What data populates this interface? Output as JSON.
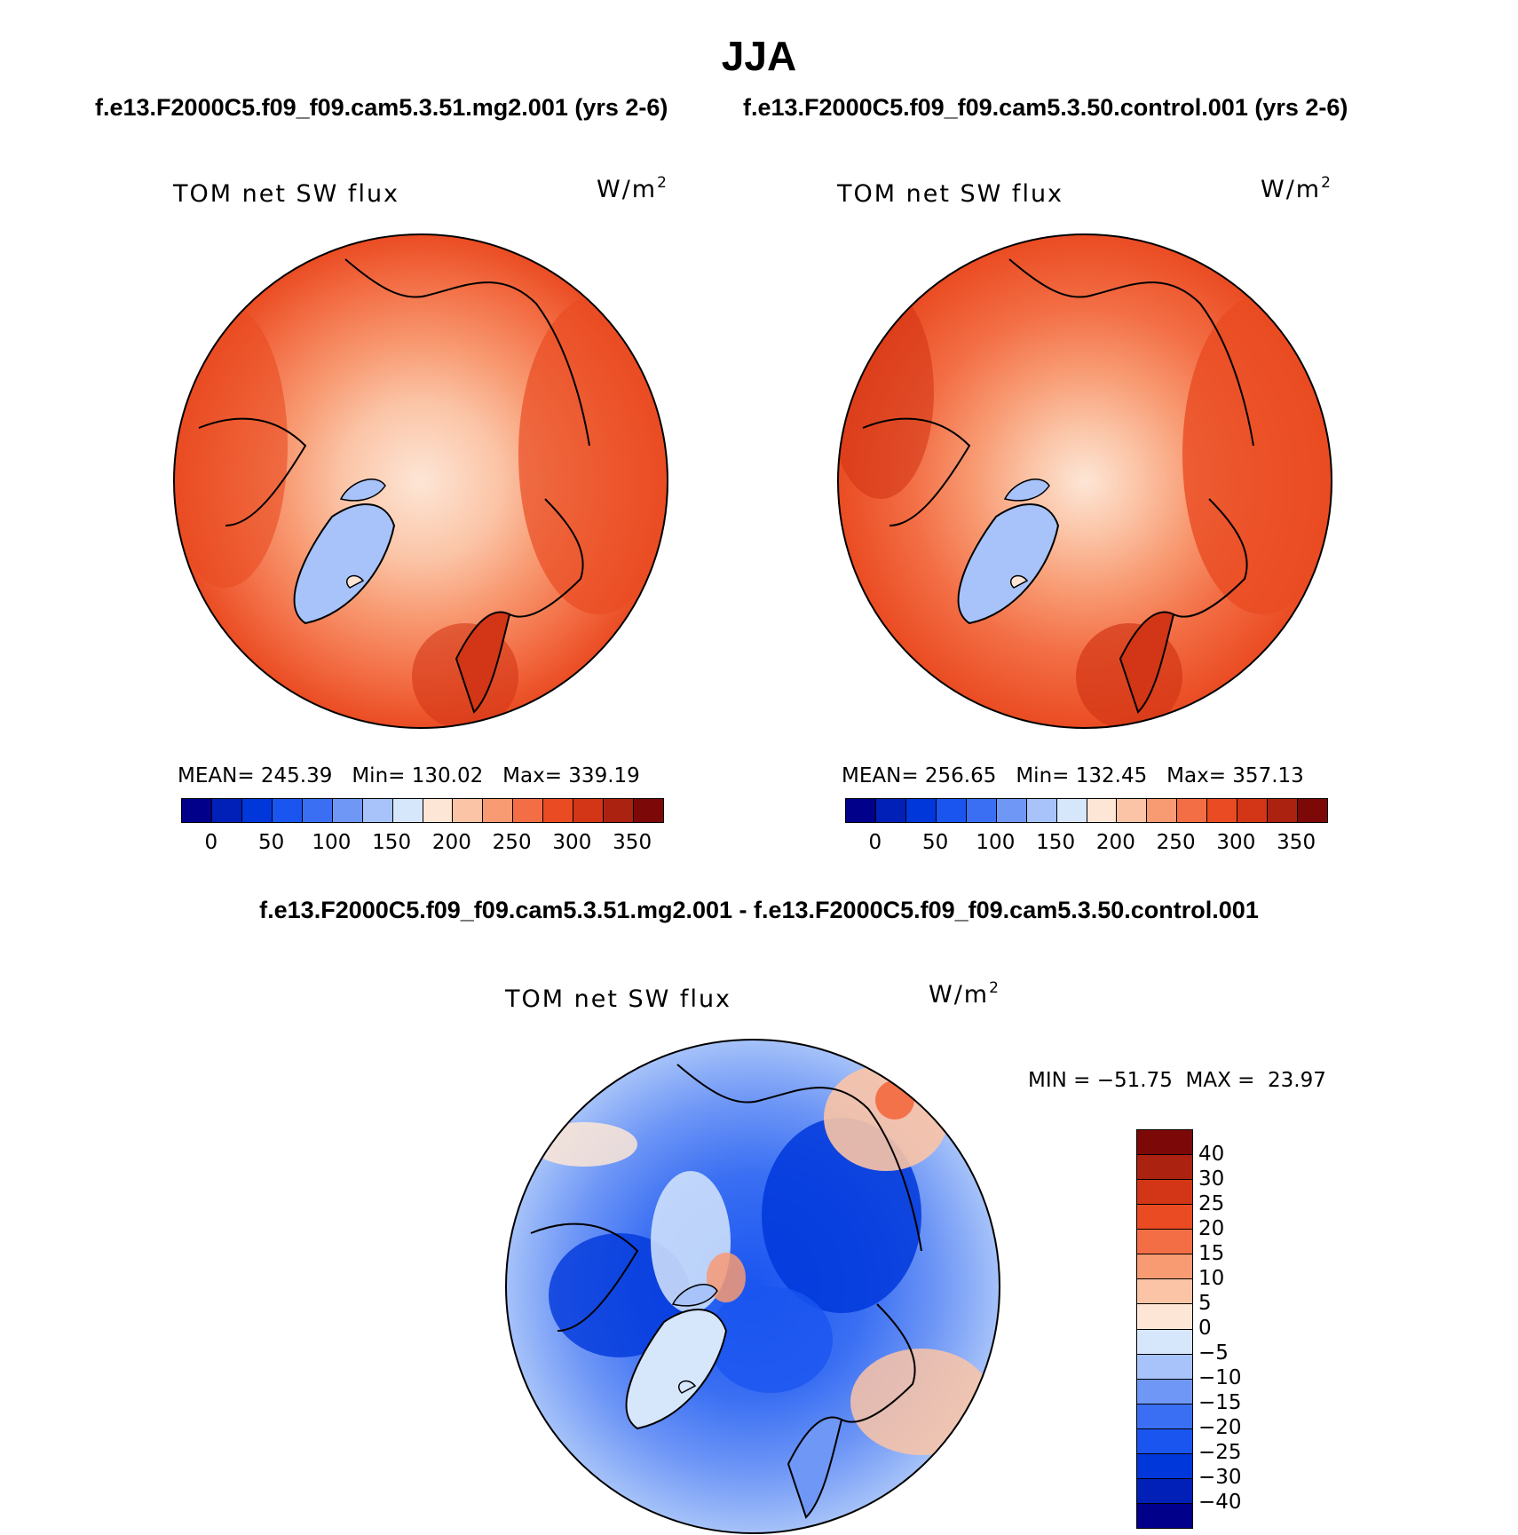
{
  "title": "JJA",
  "case_a": "f.e13.F2000C5.f09_f09.cam5.3.51.mg2.001 (yrs 2-6)",
  "case_b": "f.e13.F2000C5.f09_f09.cam5.3.50.control.001 (yrs 2-6)",
  "diff_title": "f.e13.F2000C5.f09_f09.cam5.3.51.mg2.001 - f.e13.F2000C5.f09_f09.cam5.3.50.control.001",
  "panels": [
    {
      "variable": "TOM net SW flux",
      "unit_base": "W/m",
      "unit_exp": "2",
      "mean_label": "MEAN=",
      "mean": "245.39",
      "min_label": "Min=",
      "min": "130.02",
      "max_label": "Max=",
      "max": "339.19"
    },
    {
      "variable": "TOM net SW flux",
      "unit_base": "W/m",
      "unit_exp": "2",
      "mean_label": "MEAN=",
      "mean": "256.65",
      "min_label": "Min=",
      "min": "132.45",
      "max_label": "Max=",
      "max": "357.13"
    }
  ],
  "diff_panel": {
    "variable": "TOM net SW flux",
    "unit_base": "W/m",
    "unit_exp": "2",
    "min_label": "MIN =",
    "min": "−51.75",
    "max_label": "MAX =",
    "max": "23.97"
  },
  "abs_colorbar": {
    "ticks": [
      "0",
      "50",
      "100",
      "150",
      "200",
      "250",
      "300",
      "350"
    ],
    "colors": [
      "#00008b",
      "#0020b8",
      "#0037db",
      "#1a55f0",
      "#3a6ff3",
      "#6f97f6",
      "#a7c3f9",
      "#d6e6fb",
      "#fde6d6",
      "#fbc4a6",
      "#f89a72",
      "#f36e45",
      "#ea4b22",
      "#d33616",
      "#ac2210",
      "#7c0808"
    ]
  },
  "diff_colorbar": {
    "ticks": [
      "40",
      "30",
      "25",
      "20",
      "15",
      "10",
      "5",
      "0",
      "−5",
      "−10",
      "−15",
      "−20",
      "−25",
      "−30",
      "−40"
    ],
    "colors": [
      "#7c0808",
      "#ac2210",
      "#d33616",
      "#ea4b22",
      "#f36e45",
      "#f89a72",
      "#fbc4a6",
      "#fde6d6",
      "#d6e6fb",
      "#a7c3f9",
      "#6f97f6",
      "#3a6ff3",
      "#1a55f0",
      "#0037db",
      "#0020b8",
      "#00008b"
    ]
  }
}
